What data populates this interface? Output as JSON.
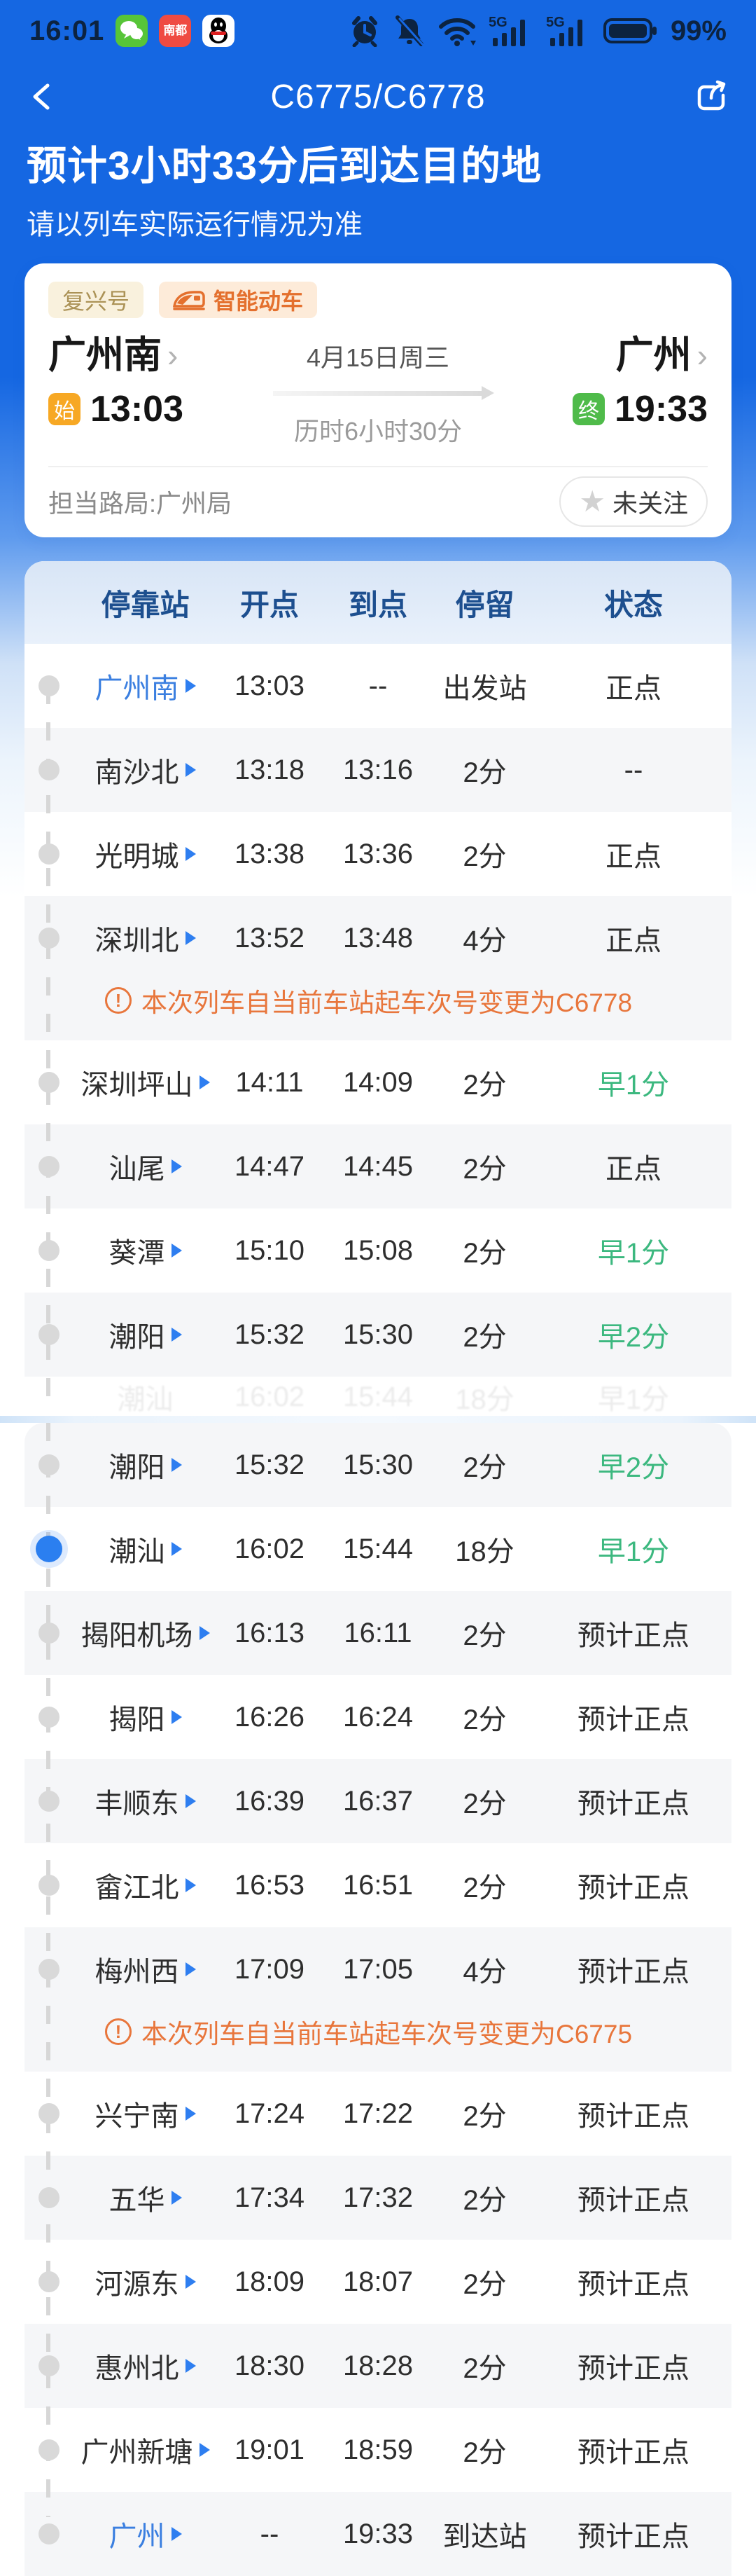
{
  "status_bar": {
    "time": "16:01",
    "battery": "99%",
    "app_icon_names": [
      "wechat-icon",
      "nandu-app-icon",
      "qq-icon"
    ],
    "system_icon_names": [
      "alarm-icon",
      "mute-icon",
      "wifi-icon",
      "signal-5g-icon",
      "signal-5g-icon",
      "battery-icon"
    ],
    "red_app_label": "南都"
  },
  "nav": {
    "title": "C6775/C6778"
  },
  "banner": {
    "title": "预计3小时33分后到达目的地",
    "subtitle": "请以列车实际运行情况为准"
  },
  "train_card": {
    "tags": [
      {
        "label": "复兴号"
      },
      {
        "label": "智能动车"
      }
    ],
    "departure": {
      "station": "广州南",
      "chevron": "›",
      "badge": "始",
      "time": "13:03"
    },
    "journey": {
      "date": "4月15日周三",
      "duration": "历时6小时30分"
    },
    "arrival": {
      "station": "广州",
      "chevron": "›",
      "badge": "终",
      "time": "19:33"
    },
    "bureau": "担当路局:广州局",
    "follow": {
      "label": "未关注",
      "star": "★"
    }
  },
  "table": {
    "headers": [
      "停靠站",
      "开点",
      "到点",
      "停留",
      "状态"
    ],
    "colors": {
      "accent_blue": "#2e7ef0",
      "green": "#3cb87f",
      "orange": "#e8763c",
      "header_navy": "#1d4f8f"
    },
    "notice_mark": "!",
    "cards": [
      {
        "rows": [
          {
            "station": "广州南",
            "dep": "13:03",
            "arr": "--",
            "stay": "出发站",
            "status": "正点",
            "highlight": true
          },
          {
            "station": "南沙北",
            "dep": "13:18",
            "arr": "13:16",
            "stay": "2分",
            "status": "--"
          },
          {
            "station": "光明城",
            "dep": "13:38",
            "arr": "13:36",
            "stay": "2分",
            "status": "正点"
          },
          {
            "station": "深圳北",
            "dep": "13:52",
            "arr": "13:48",
            "stay": "4分",
            "status": "正点",
            "notice": "本次列车自当前车站起车次号变更为C6778"
          },
          {
            "station": "深圳坪山",
            "dep": "14:11",
            "arr": "14:09",
            "stay": "2分",
            "status": "早1分",
            "status_green": true
          },
          {
            "station": "汕尾",
            "dep": "14:47",
            "arr": "14:45",
            "stay": "2分",
            "status": "正点"
          },
          {
            "station": "葵潭",
            "dep": "15:10",
            "arr": "15:08",
            "stay": "2分",
            "status": "早1分",
            "status_green": true
          },
          {
            "station": "潮阳",
            "dep": "15:32",
            "arr": "15:30",
            "stay": "2分",
            "status": "早2分",
            "status_green": true
          }
        ],
        "ghost_row": {
          "station": "潮汕",
          "dep": "16:02",
          "arr": "15:44",
          "stay": "18分",
          "status": "早1分"
        }
      },
      {
        "rows": [
          {
            "station": "潮阳",
            "dep": "15:32",
            "arr": "15:30",
            "stay": "2分",
            "status": "早2分",
            "status_green": true
          },
          {
            "station": "潮汕",
            "dep": "16:02",
            "arr": "15:44",
            "stay": "18分",
            "status": "早1分",
            "status_green": true,
            "current": true
          },
          {
            "station": "揭阳机场",
            "dep": "16:13",
            "arr": "16:11",
            "stay": "2分",
            "status": "预计正点"
          },
          {
            "station": "揭阳",
            "dep": "16:26",
            "arr": "16:24",
            "stay": "2分",
            "status": "预计正点"
          },
          {
            "station": "丰顺东",
            "dep": "16:39",
            "arr": "16:37",
            "stay": "2分",
            "status": "预计正点"
          },
          {
            "station": "畲江北",
            "dep": "16:53",
            "arr": "16:51",
            "stay": "2分",
            "status": "预计正点"
          },
          {
            "station": "梅州西",
            "dep": "17:09",
            "arr": "17:05",
            "stay": "4分",
            "status": "预计正点",
            "notice": "本次列车自当前车站起车次号变更为C6775"
          },
          {
            "station": "兴宁南",
            "dep": "17:24",
            "arr": "17:22",
            "stay": "2分",
            "status": "预计正点"
          },
          {
            "station": "五华",
            "dep": "17:34",
            "arr": "17:32",
            "stay": "2分",
            "status": "预计正点"
          },
          {
            "station": "河源东",
            "dep": "18:09",
            "arr": "18:07",
            "stay": "2分",
            "status": "预计正点"
          },
          {
            "station": "惠州北",
            "dep": "18:30",
            "arr": "18:28",
            "stay": "2分",
            "status": "预计正点"
          },
          {
            "station": "广州新塘",
            "dep": "19:01",
            "arr": "18:59",
            "stay": "2分",
            "status": "预计正点"
          },
          {
            "station": "广州",
            "dep": "--",
            "arr": "19:33",
            "stay": "到达站",
            "status": "预计正点",
            "highlight": true
          }
        ]
      }
    ]
  }
}
